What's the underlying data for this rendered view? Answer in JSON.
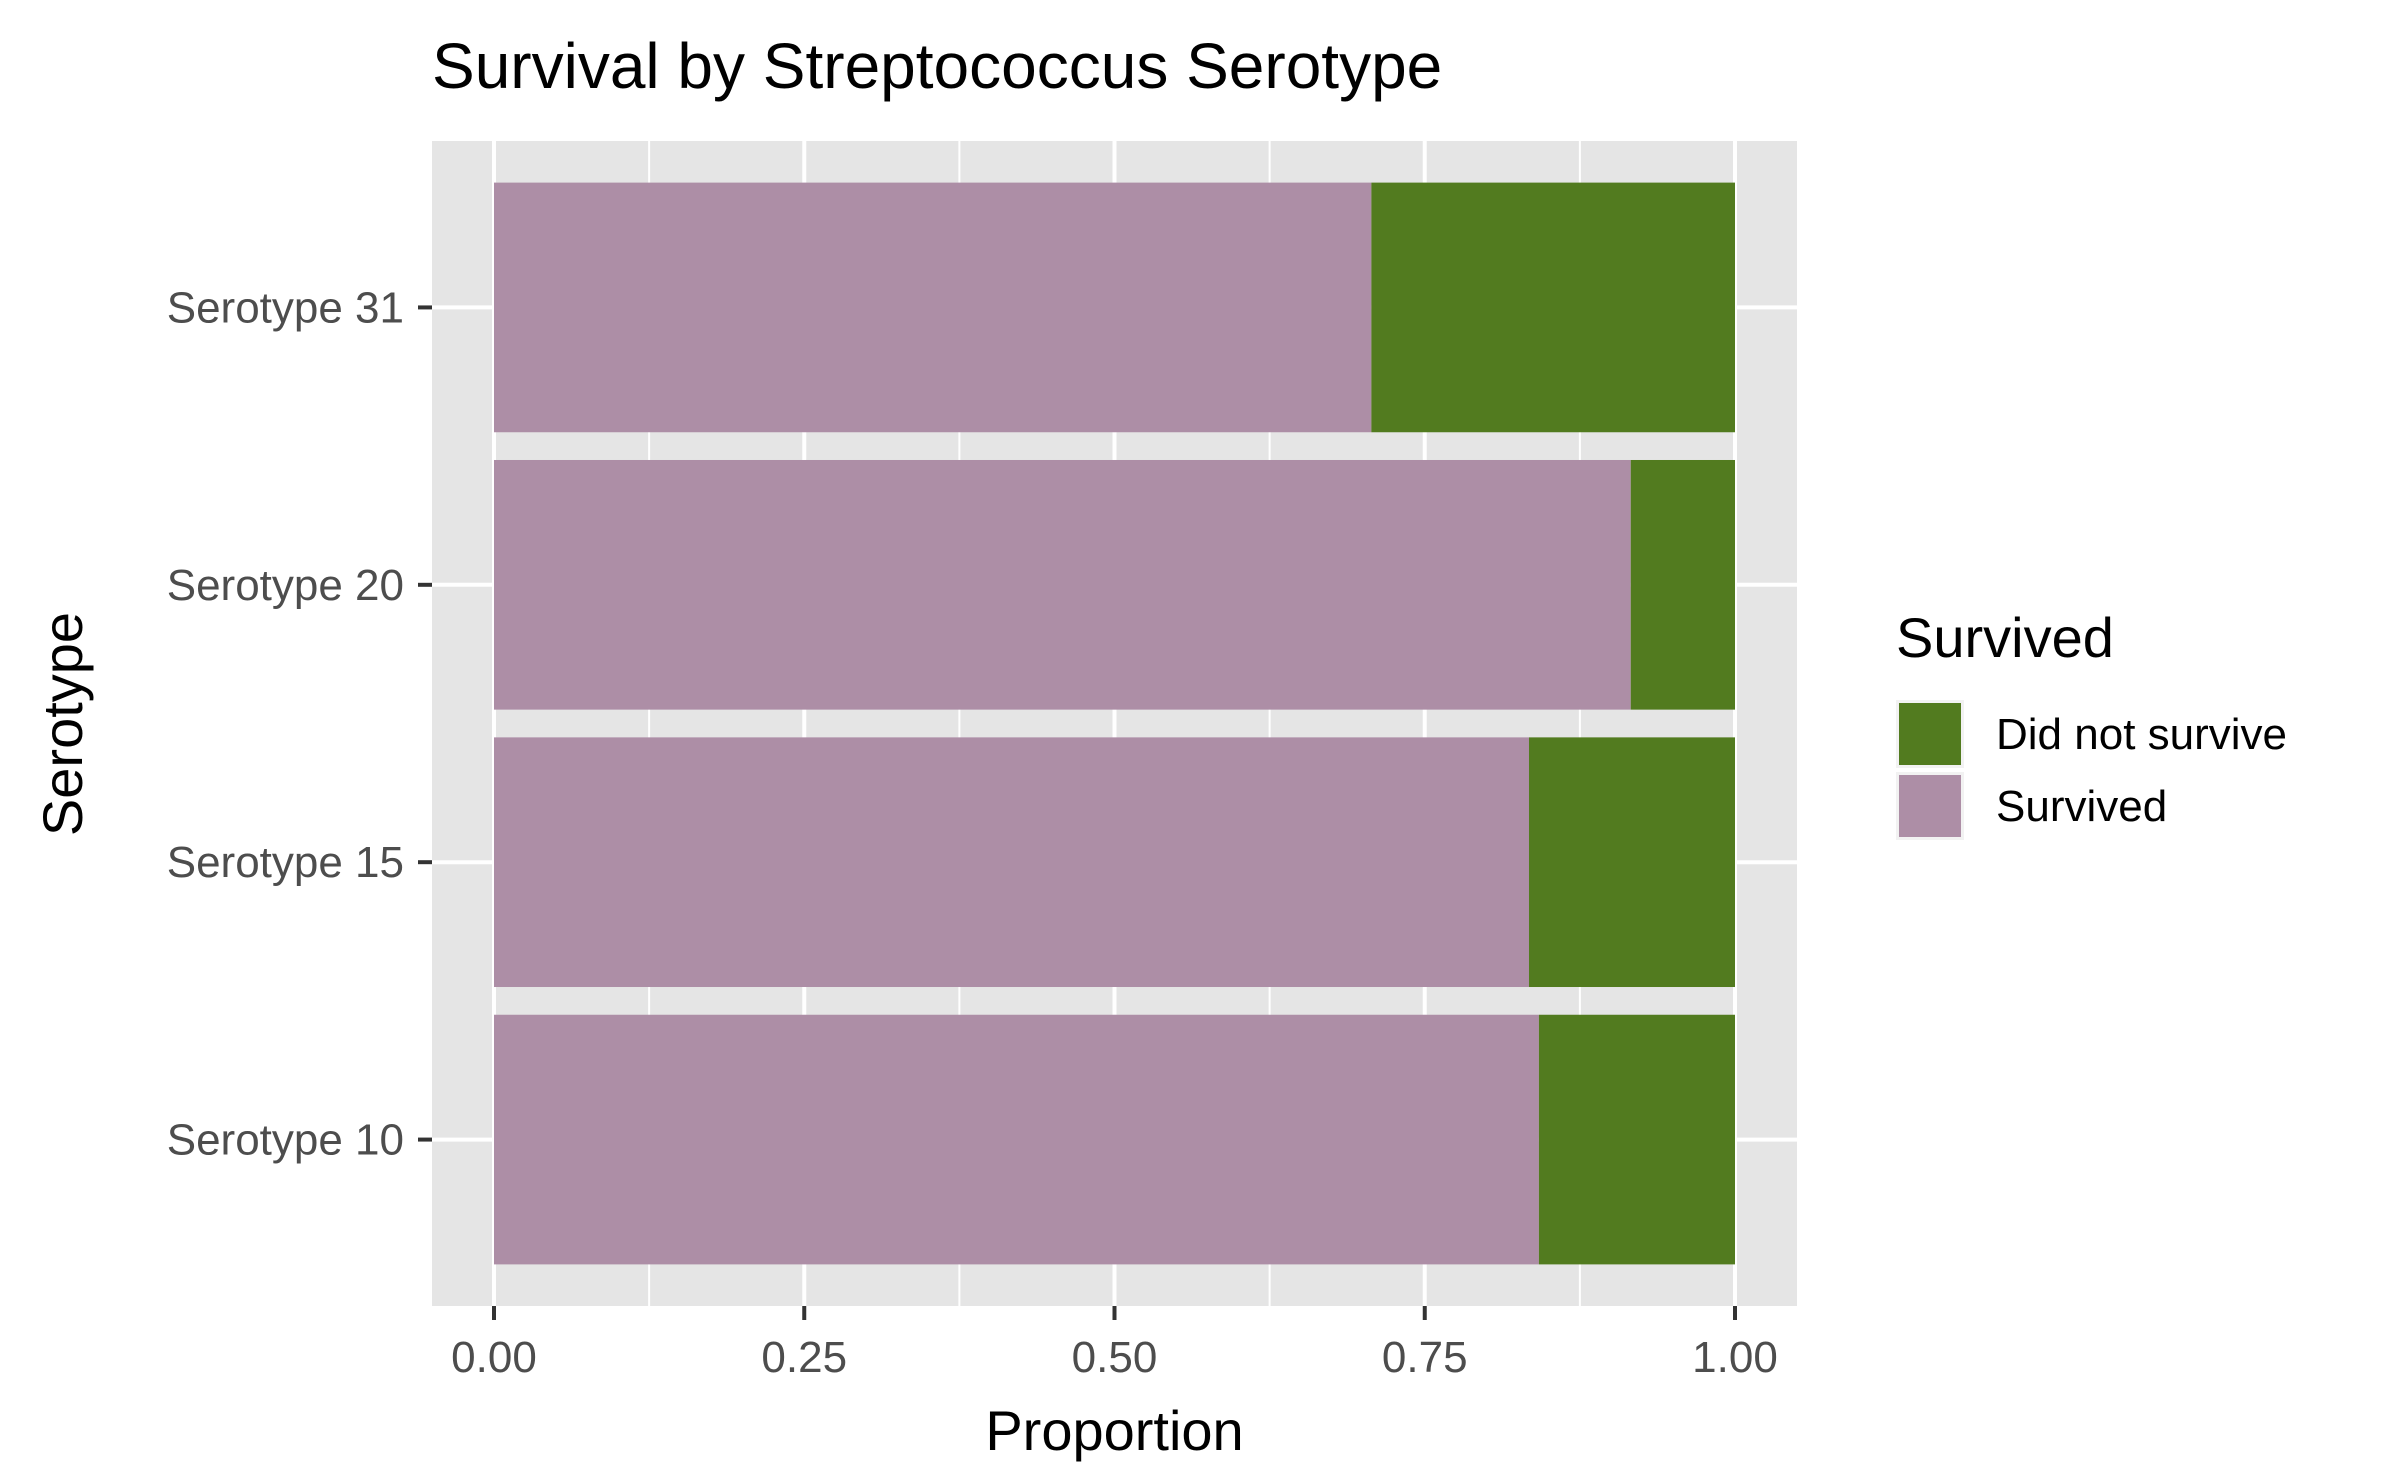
{
  "chart_data": {
    "type": "bar",
    "orientation": "horizontal",
    "stacked": true,
    "title": "Survival by Streptococcus Serotype",
    "xlabel": "Proportion",
    "ylabel": "Serotype",
    "xlim": [
      0,
      1
    ],
    "x_ticks": [
      "0.00",
      "0.25",
      "0.50",
      "0.75",
      "1.00"
    ],
    "categories": [
      "Serotype 10",
      "Serotype 15",
      "Serotype 20",
      "Serotype 31"
    ],
    "series": [
      {
        "name": "Survived",
        "color": "#ad8ea6",
        "values": [
          0.842,
          0.834,
          0.916,
          0.707
        ]
      },
      {
        "name": "Did not survive",
        "color": "#527b1f",
        "values": [
          0.158,
          0.166,
          0.084,
          0.293
        ]
      }
    ],
    "legend": {
      "title": "Survived",
      "placement": "right",
      "entries": [
        {
          "label": "Did not survive",
          "color": "#527b1f"
        },
        {
          "label": "Survived",
          "color": "#ad8ea6"
        }
      ]
    },
    "grid": true,
    "panel_background": "#e5e5e5",
    "grid_color": "#ffffff"
  }
}
